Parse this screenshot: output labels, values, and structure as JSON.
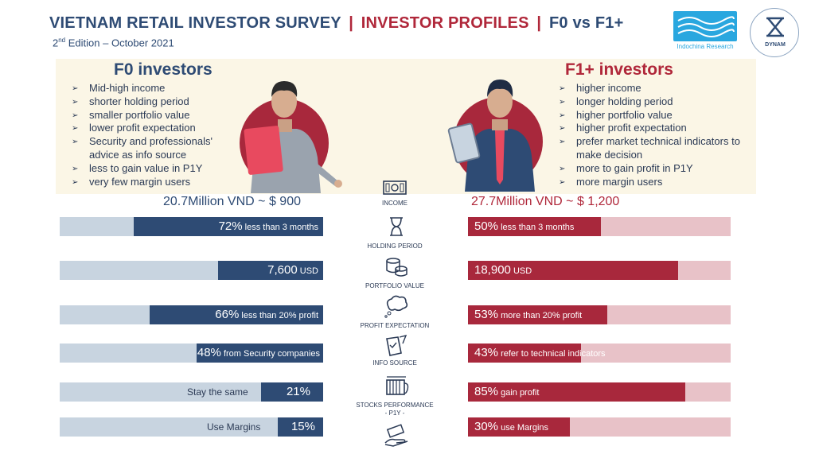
{
  "header": {
    "title_main": "VIETNAM RETAIL INVESTOR SURVEY",
    "separator": "|",
    "title_profiles": "INVESTOR PROFILES",
    "title_vs": "F0 vs F1+",
    "subtitle_num": "2",
    "subtitle_sup": "nd",
    "subtitle_rest": " Edition – October 2021",
    "logo_left_text": "Indochina Research",
    "logo_right_text": "DYNAM"
  },
  "f0": {
    "heading": "F0 investors",
    "bullets": [
      "Mid-high income",
      "shorter holding period",
      "smaller portfolio value",
      "lower profit expectation",
      "Security and professionals' advice as info source",
      "less to gain value in P1Y",
      "very few margin users"
    ],
    "income": "20.7Million VND ~ $ 900",
    "rows": [
      {
        "value": "72%",
        "label": " less than 3 months",
        "pct": 0.72
      },
      {
        "value": "7,600",
        "label": " USD",
        "pct": 0.4
      },
      {
        "value": "66%",
        "label": " less than 20% profit",
        "pct": 0.66
      },
      {
        "value": "48%",
        "label": " from Security companies",
        "pct": 0.48
      },
      {
        "value": "21%",
        "label": "Stay the same",
        "pct": 0.21
      },
      {
        "value": "15%",
        "label": "Use Margins",
        "pct": 0.15
      }
    ]
  },
  "f1": {
    "heading": "F1+ investors",
    "bullets": [
      "higher income",
      "longer holding period",
      "higher portfolio value",
      "higher profit expectation",
      "prefer market technical indicators to make decision",
      "more to gain profit in P1Y",
      "more margin users"
    ],
    "income": "27.7Million VND ~ $ 1,200",
    "rows": [
      {
        "value": "50%",
        "label": " less than 3 months",
        "pct": 0.5
      },
      {
        "value": "18,900",
        "label": " USD",
        "pct": 0.8
      },
      {
        "value": "53%",
        "label": " more than 20% profit",
        "pct": 0.53
      },
      {
        "value": "43%",
        "label": " refer to technical indicators",
        "pct": 0.43
      },
      {
        "value": "85%",
        "label": " gain profit",
        "pct": 0.85
      },
      {
        "value": "30%",
        "label": " use Margins",
        "pct": 0.3
      }
    ]
  },
  "categories": {
    "income": "INCOME",
    "holding": "HOLDING PERIOD",
    "portfolio": "PORTFOLIO VALUE",
    "profit": "PROFIT EXPECTATION",
    "info": "INFO SOURCE",
    "stocks": "STOCKS PERFORMANCE",
    "stocks_sub": "- P1Y -"
  },
  "colors": {
    "navy": "#2e4b74",
    "crimson": "#b0273a",
    "navy_light": "#c8d4e0",
    "crimson_light": "#e8c2c8",
    "panel": "#fbf6e6"
  }
}
